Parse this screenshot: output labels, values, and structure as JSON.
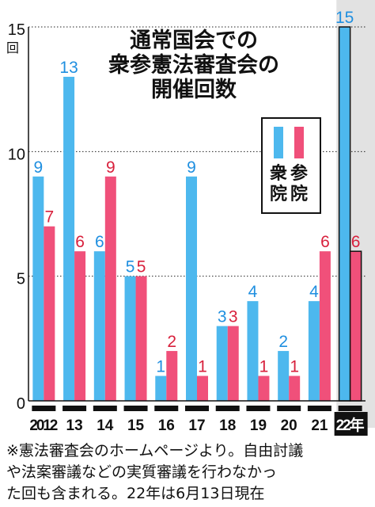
{
  "chart_data": {
    "type": "bar",
    "title": [
      "通常国会での",
      "衆参憲法審査会の",
      "開催回数"
    ],
    "unit": "回",
    "categories": [
      "2012",
      "13",
      "14",
      "15",
      "16",
      "17",
      "18",
      "19",
      "20",
      "21",
      "22年"
    ],
    "series": [
      {
        "name": "衆院",
        "color": "#4db8ee",
        "values": [
          9,
          13,
          6,
          5,
          1,
          9,
          3,
          4,
          2,
          4,
          15
        ]
      },
      {
        "name": "参院",
        "color": "#f0507a",
        "values": [
          7,
          6,
          9,
          5,
          2,
          1,
          3,
          1,
          1,
          6,
          6
        ]
      }
    ],
    "ylim": [
      0,
      15
    ],
    "yticks": [
      0,
      5,
      10,
      15
    ],
    "grid": true,
    "legend": "top-right",
    "highlight_category": "22年"
  },
  "note": [
    "※憲法審査会のホームページより。自由討議",
    "や法案審議などの実質審議を行わなかっ",
    "た回も含まれる。22年は6月13日現在"
  ]
}
